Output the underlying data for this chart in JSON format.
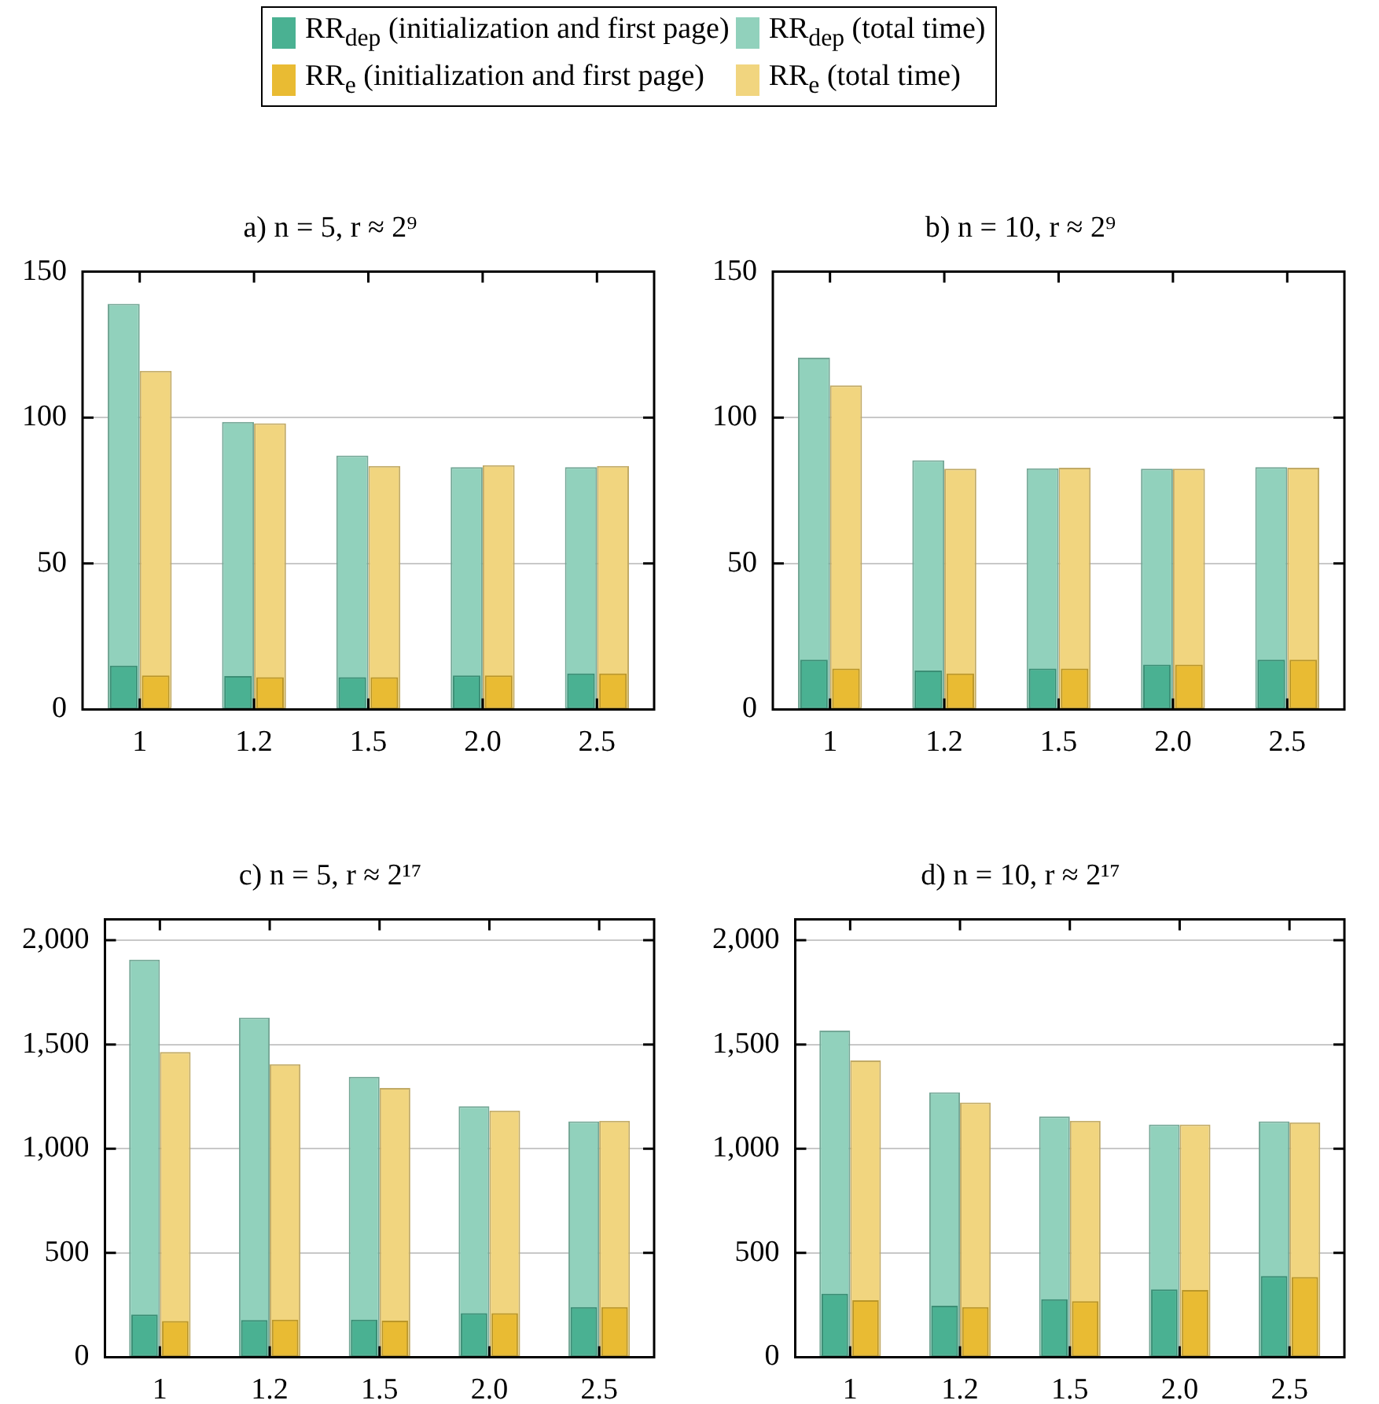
{
  "chart_data": [
    {
      "type": "bar",
      "title": "a) n = 5, r ≈ 2⁹",
      "categories": [
        "1",
        "1.2",
        "1.5",
        "2.0",
        "2.5"
      ],
      "ylim": [
        0,
        150
      ],
      "yticks": [
        0,
        50,
        100,
        150
      ],
      "grid": "y",
      "legend": "top",
      "series": [
        {
          "name": "RR$_{dep}$ (initialization and first page)",
          "color": "#4ab192",
          "values": [
            15,
            11.4,
            11,
            11.6,
            12.3
          ]
        },
        {
          "name": "RR$_{dep}$ (total time)",
          "color": "#91d1bc",
          "values": [
            139,
            98.5,
            87,
            83,
            83
          ]
        },
        {
          "name": "RR$_{e}$ (initialization and first page)",
          "color": "#e9bb33",
          "values": [
            11.6,
            11,
            11,
            11.6,
            12.3
          ]
        },
        {
          "name": "RR$_{e}$ (total time)",
          "color": "#f1d57f",
          "values": [
            116,
            98,
            83.4,
            83.7,
            83.4
          ]
        }
      ]
    },
    {
      "type": "bar",
      "title": "b) n = 10, r ≈ 2⁹",
      "categories": [
        "1",
        "1.2",
        "1.5",
        "2.0",
        "2.5"
      ],
      "ylim": [
        0,
        150
      ],
      "yticks": [
        0,
        50,
        100,
        150
      ],
      "grid": "y",
      "series": [
        {
          "color": "#4ab192",
          "values": [
            17,
            13.3,
            14,
            15.3,
            17
          ]
        },
        {
          "color": "#91d1bc",
          "values": [
            120.5,
            85.4,
            82.6,
            82.5,
            83
          ]
        },
        {
          "color": "#e9bb33",
          "values": [
            14,
            12.3,
            14,
            15.3,
            17
          ]
        },
        {
          "color": "#f1d57f",
          "values": [
            111,
            82.5,
            82.8,
            82.5,
            82.8
          ]
        }
      ]
    },
    {
      "type": "bar",
      "title": "c) n = 5, r ≈ 2¹⁷",
      "categories": [
        "1",
        "1.2",
        "1.5",
        "2.0",
        "2.5"
      ],
      "ylim": [
        0,
        2100
      ],
      "yticks": [
        0,
        500,
        {
          "value": 1000,
          "label": "1,000"
        },
        {
          "value": 1500,
          "label": "1,500"
        },
        {
          "value": 2000,
          "label": "2,000"
        }
      ],
      "grid": "y",
      "series": [
        {
          "color": "#4ab192",
          "values": [
            204,
            178,
            180,
            211,
            240
          ]
        },
        {
          "color": "#91d1bc",
          "values": [
            1907,
            1629,
            1345,
            1204,
            1131
          ]
        },
        {
          "color": "#e9bb33",
          "values": [
            173,
            180,
            175,
            211,
            240
          ]
        },
        {
          "color": "#f1d57f",
          "values": [
            1464,
            1405,
            1291,
            1183,
            1134
          ]
        }
      ]
    },
    {
      "type": "bar",
      "title": "d) n = 10, r ≈ 2¹⁷",
      "categories": [
        "1",
        "1.2",
        "1.5",
        "2.0",
        "2.5"
      ],
      "ylim": [
        0,
        2100
      ],
      "yticks": [
        0,
        500,
        {
          "value": 1000,
          "label": "1,000"
        },
        {
          "value": 1500,
          "label": "1,500"
        },
        {
          "value": 2000,
          "label": "2,000"
        }
      ],
      "grid": "y",
      "series": [
        {
          "color": "#4ab192",
          "values": [
            304,
            247,
            278,
            325,
            389
          ]
        },
        {
          "color": "#91d1bc",
          "values": [
            1567,
            1271,
            1155,
            1116,
            1131
          ]
        },
        {
          "color": "#e9bb33",
          "values": [
            273,
            240,
            268,
            322,
            384
          ]
        },
        {
          "color": "#f1d57f",
          "values": [
            1423,
            1222,
            1134,
            1116,
            1126
          ]
        }
      ]
    }
  ]
}
